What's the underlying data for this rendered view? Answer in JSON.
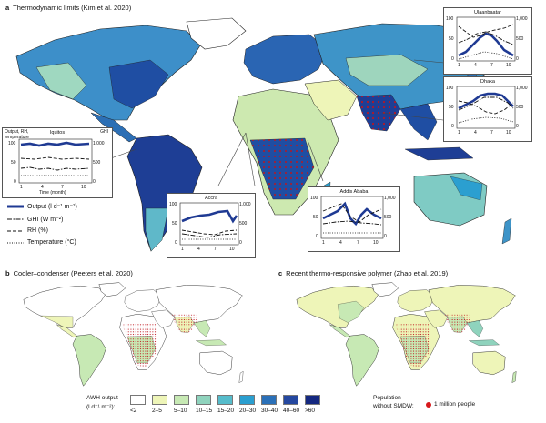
{
  "panels": {
    "a": {
      "letter": "a",
      "title": "Thermodynamic limits (Kim et al. 2020)"
    },
    "b": {
      "letter": "b",
      "title": "Cooler–condenser (Peeters et al. 2020)"
    },
    "c": {
      "letter": "c",
      "title": "Recent thermo-responsive polymer (Zhao et al. 2019)"
    }
  },
  "insets": {
    "iquitos": {
      "city": "Iquitos",
      "left_axis_label_line1": "Output, RH,",
      "left_axis_label_line2": "temperature",
      "right_axis_label": "GHI",
      "x_axis_label": "Time (month)",
      "y_left_ticks": [
        "100",
        "50",
        "0"
      ],
      "y_right_ticks": [
        "1,000",
        "500",
        "0"
      ],
      "x_ticks": [
        "1",
        "4",
        "7",
        "10"
      ]
    },
    "ulaanbaatar": {
      "city": "Ulaanbaatar",
      "y_left_ticks": [
        "100",
        "50",
        "0"
      ],
      "y_right_ticks": [
        "1,000",
        "500",
        "0"
      ],
      "x_ticks": [
        "1",
        "4",
        "7",
        "10"
      ]
    },
    "dhaka": {
      "city": "Dhaka",
      "y_left_ticks": [
        "100",
        "50",
        "0"
      ],
      "y_right_ticks": [
        "1,000",
        "500",
        "0"
      ],
      "x_ticks": [
        "1",
        "4",
        "7",
        "10"
      ]
    },
    "accra": {
      "city": "Accra",
      "y_left_ticks": [
        "100",
        "50",
        "0"
      ],
      "y_right_ticks": [
        "1,000",
        "500",
        "0"
      ],
      "x_ticks": [
        "1",
        "4",
        "7",
        "10"
      ]
    },
    "addis": {
      "city": "Addis Ababa",
      "y_left_ticks": [
        "100",
        "50",
        "0"
      ],
      "y_right_ticks": [
        "1,000",
        "500",
        "0"
      ],
      "x_ticks": [
        "1",
        "4",
        "7",
        "10"
      ]
    }
  },
  "line_legend": {
    "output": "Output (l d⁻¹ m⁻²)",
    "ghi": "GHI (W m⁻²)",
    "rh": "RH (%)",
    "temperature": "Temperature (°C)"
  },
  "awh_legend": {
    "title_line1": "AWH output",
    "title_line2": "(l d⁻¹ m⁻²):",
    "classes": [
      {
        "label": "<2",
        "color": "#ffffff"
      },
      {
        "label": "2–5",
        "color": "#eef5b8"
      },
      {
        "label": "5–10",
        "color": "#c7e9b4"
      },
      {
        "label": "10–15",
        "color": "#8fd3bd"
      },
      {
        "label": "15–20",
        "color": "#56bccb"
      },
      {
        "label": "20–30",
        "color": "#2b9fd0"
      },
      {
        "label": "30–40",
        "color": "#2a70b8"
      },
      {
        "label": "40–60",
        "color": "#2548a0"
      },
      {
        "label": ">60",
        "color": "#142880"
      }
    ]
  },
  "population_legend": {
    "label_line1": "Population",
    "label_line2": "without SMDW:",
    "dot_label": "1 million people",
    "dot_color": "#d7191c"
  },
  "colors": {
    "output_line": "#1f3a93",
    "land_outline": "#222222",
    "ocean": "#ffffff"
  }
}
